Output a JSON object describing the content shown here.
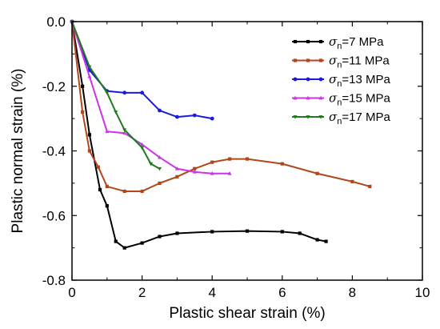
{
  "chart_data": {
    "type": "line",
    "xlabel": "Plastic shear strain (%)",
    "ylabel": "Plastic normal strain (%)",
    "xlim": [
      0,
      10
    ],
    "ylim": [
      -0.8,
      0.0
    ],
    "xticks": [
      0,
      2,
      4,
      6,
      8,
      10
    ],
    "yticks": [
      0.0,
      -0.2,
      -0.4,
      -0.6,
      -0.8
    ],
    "xtick_labels": [
      "0",
      "2",
      "4",
      "6",
      "8",
      "10"
    ],
    "ytick_labels": [
      "0.0",
      "-0.2",
      "-0.4",
      "-0.6",
      "-0.8"
    ],
    "legend_position": "top-right",
    "grid": false,
    "legend_symbol": "σ",
    "legend_subscript": "n",
    "series": [
      {
        "name": "=7 MPa",
        "color": "#000000",
        "marker": "square",
        "points": [
          [
            0,
            0
          ],
          [
            0.3,
            -0.2
          ],
          [
            0.5,
            -0.35
          ],
          [
            0.8,
            -0.52
          ],
          [
            1.0,
            -0.57
          ],
          [
            1.25,
            -0.68
          ],
          [
            1.5,
            -0.7
          ],
          [
            2.0,
            -0.685
          ],
          [
            2.5,
            -0.665
          ],
          [
            3.0,
            -0.655
          ],
          [
            4.0,
            -0.65
          ],
          [
            5.0,
            -0.648
          ],
          [
            6.0,
            -0.65
          ],
          [
            6.5,
            -0.655
          ],
          [
            7.0,
            -0.675
          ],
          [
            7.25,
            -0.68
          ]
        ]
      },
      {
        "name": "=11 MPa",
        "color": "#B2461C",
        "marker": "square",
        "points": [
          [
            0,
            0
          ],
          [
            0.3,
            -0.28
          ],
          [
            0.5,
            -0.4
          ],
          [
            0.75,
            -0.45
          ],
          [
            1.0,
            -0.51
          ],
          [
            1.5,
            -0.525
          ],
          [
            2.0,
            -0.525
          ],
          [
            2.5,
            -0.5
          ],
          [
            3.0,
            -0.48
          ],
          [
            3.5,
            -0.455
          ],
          [
            4.0,
            -0.435
          ],
          [
            4.5,
            -0.425
          ],
          [
            5.0,
            -0.425
          ],
          [
            6.0,
            -0.44
          ],
          [
            7.0,
            -0.47
          ],
          [
            8.0,
            -0.495
          ],
          [
            8.5,
            -0.51
          ]
        ]
      },
      {
        "name": "=13 MPa",
        "color": "#1A1AE0",
        "marker": "circle",
        "points": [
          [
            0,
            0
          ],
          [
            0.5,
            -0.15
          ],
          [
            1.0,
            -0.215
          ],
          [
            1.5,
            -0.22
          ],
          [
            2.0,
            -0.22
          ],
          [
            2.5,
            -0.275
          ],
          [
            3.0,
            -0.295
          ],
          [
            3.5,
            -0.29
          ],
          [
            4.0,
            -0.3
          ]
        ]
      },
      {
        "name": "=15 MPa",
        "color": "#CC33E6",
        "marker": "triangle-up",
        "points": [
          [
            0,
            0
          ],
          [
            0.5,
            -0.17
          ],
          [
            1.0,
            -0.34
          ],
          [
            1.5,
            -0.345
          ],
          [
            2.0,
            -0.38
          ],
          [
            2.5,
            -0.42
          ],
          [
            3.0,
            -0.455
          ],
          [
            3.5,
            -0.465
          ],
          [
            4.0,
            -0.47
          ],
          [
            4.5,
            -0.47
          ]
        ]
      },
      {
        "name": "=17 MPa",
        "color": "#1E7A1E",
        "marker": "triangle-down",
        "points": [
          [
            0,
            0
          ],
          [
            0.5,
            -0.14
          ],
          [
            1.0,
            -0.22
          ],
          [
            1.25,
            -0.28
          ],
          [
            1.5,
            -0.335
          ],
          [
            2.0,
            -0.39
          ],
          [
            2.25,
            -0.44
          ],
          [
            2.5,
            -0.455
          ]
        ]
      }
    ]
  }
}
